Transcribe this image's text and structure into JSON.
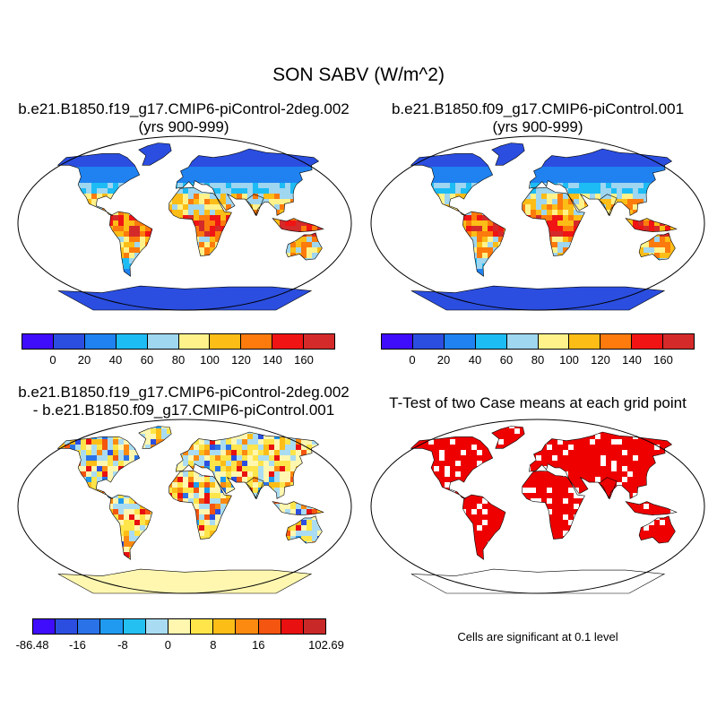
{
  "title": "SON SABV (W/m^2)",
  "panels": [
    {
      "title_line1": "b.e21.B1850.f19_g17.CMIP6-piControl-2deg.002",
      "title_line2": "(yrs 900-999)"
    },
    {
      "title_line1": "b.e21.B1850.f09_g17.CMIP6-piControl.001",
      "title_line2": "(yrs 900-999)"
    },
    {
      "title_line1": "b.e21.B1850.f19_g17.CMIP6-piControl-2deg.002",
      "title_line2": "- b.e21.B1850.f09_g17.CMIP6-piControl.001"
    },
    {
      "title_line1": "T-Test of two Case means at each grid point"
    }
  ],
  "colorbar_abs": {
    "colors": [
      "#3f0dfb",
      "#2b4ee0",
      "#1f82f0",
      "#1dbcf4",
      "#9fd6f0",
      "#fff28a",
      "#fdbd17",
      "#fc7b0c",
      "#f01414",
      "#d42a2a"
    ],
    "labels": [
      "0",
      "20",
      "40",
      "60",
      "80",
      "100",
      "120",
      "140",
      "160"
    ]
  },
  "colorbar_diff": {
    "colors": [
      "#3f0dfb",
      "#2b4ee0",
      "#2a72e8",
      "#1f9af0",
      "#24c0f2",
      "#a9dcf2",
      "#fff7b0",
      "#ffe54a",
      "#fdbd17",
      "#fc8a10",
      "#f45510",
      "#e81010",
      "#c82828"
    ],
    "labels": [
      {
        "text": "-86.48",
        "at": 0
      },
      {
        "text": "-16",
        "at": 2
      },
      {
        "text": "-8",
        "at": 4
      },
      {
        "text": "0",
        "at": 6
      },
      {
        "text": "8",
        "at": 8
      },
      {
        "text": "16",
        "at": 10
      },
      {
        "text": "102.69",
        "at": 13
      }
    ]
  },
  "significance_note": "Cells are significant at 0.1 level",
  "significance_color": "#ee0000"
}
